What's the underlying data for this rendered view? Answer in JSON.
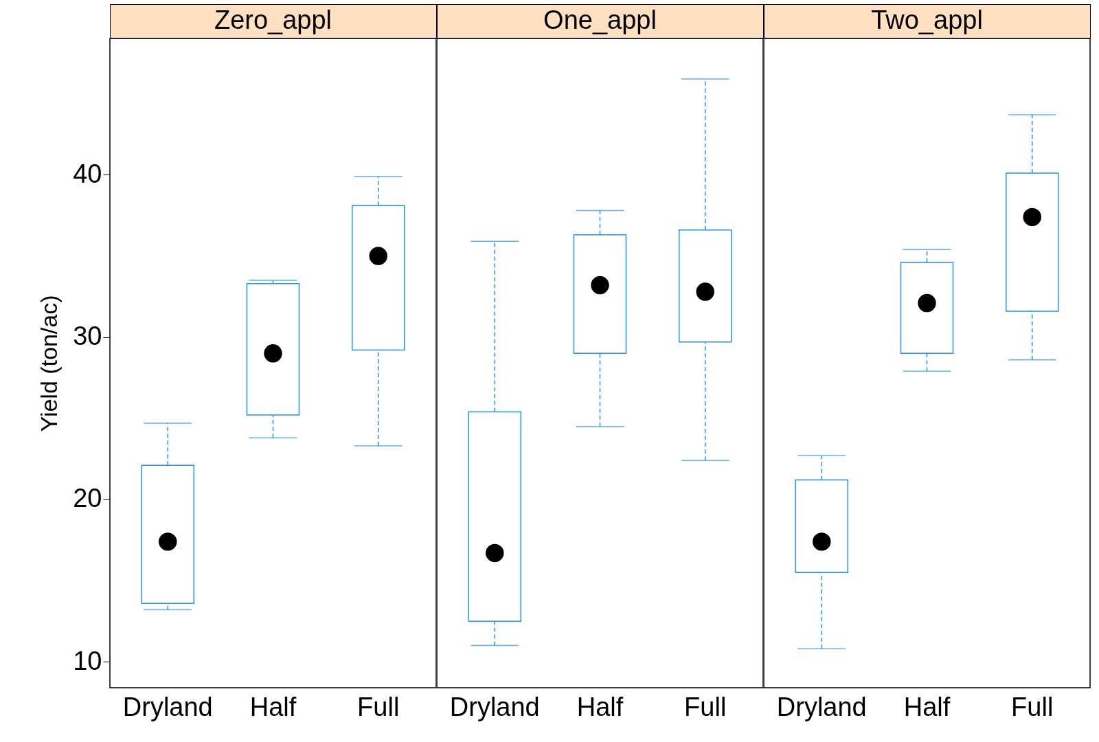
{
  "chart_data": [
    {
      "type": "box",
      "title": "Zero_appl",
      "ylabel": "Yield (ton/ac)",
      "categories": [
        "Dryland",
        "Half",
        "Full"
      ],
      "ylim": [
        8.4,
        48.4
      ],
      "yticks": [
        10,
        20,
        30,
        40
      ],
      "grid": false,
      "marker": "circle",
      "line_style": "dashed",
      "series": [
        {
          "color": "#1e90ff",
          "boxes": [
            {
              "low": 13.2,
              "q1": 13.6,
              "median": 17.4,
              "q3": 22.1,
              "high": 24.7
            },
            {
              "low": 23.8,
              "q1": 25.2,
              "median": 29.0,
              "q3": 33.3,
              "high": 33.5
            },
            {
              "low": 23.3,
              "q1": 29.2,
              "median": 35.0,
              "q3": 38.1,
              "high": 39.9
            }
          ]
        }
      ]
    },
    {
      "type": "box",
      "title": "One_appl",
      "categories": [
        "Dryland",
        "Half",
        "Full"
      ],
      "ylim": [
        8.4,
        48.4
      ],
      "yticks": [
        10,
        20,
        30,
        40
      ],
      "tick_labels": "x",
      "grid": false,
      "marker": "circle",
      "line_style": "dashed",
      "series": [
        {
          "color": "#1e90ff",
          "boxes": [
            {
              "low": 11.0,
              "q1": 12.5,
              "median": 16.7,
              "q3": 25.4,
              "high": 35.9
            },
            {
              "low": 24.5,
              "q1": 29.0,
              "median": 33.2,
              "q3": 36.3,
              "high": 37.8
            },
            {
              "low": 22.4,
              "q1": 29.7,
              "median": 32.8,
              "q3": 36.6,
              "high": 45.9
            }
          ]
        }
      ]
    },
    {
      "type": "box",
      "title": "Two_appl",
      "categories": [
        "Dryland",
        "Half",
        "Full"
      ],
      "ylim": [
        8.4,
        48.4
      ],
      "yticks": [
        10,
        20,
        30,
        40
      ],
      "tick_labels": "x",
      "grid": false,
      "marker": "circle",
      "line_style": "dashed",
      "series": [
        {
          "color": "#1e90ff",
          "boxes": [
            {
              "low": 10.8,
              "q1": 15.5,
              "median": 17.4,
              "q3": 21.2,
              "high": 22.7
            },
            {
              "low": 27.9,
              "q1": 29.0,
              "median": 32.1,
              "q3": 34.6,
              "high": 35.4
            },
            {
              "low": 28.6,
              "q1": 31.6,
              "median": 37.4,
              "q3": 40.1,
              "high": 43.7
            }
          ]
        }
      ]
    }
  ]
}
